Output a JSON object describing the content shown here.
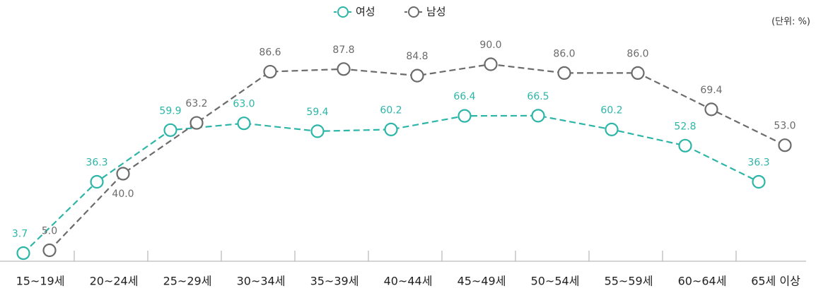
{
  "chart_data": {
    "type": "line",
    "unit_label": "(단위: %)",
    "categories": [
      "15~19세",
      "20~24세",
      "25~29세",
      "30~34세",
      "35~39세",
      "40~44세",
      "45~49세",
      "50~54세",
      "55~59세",
      "60~64세",
      "65세 이상"
    ],
    "series": [
      {
        "name": "여성",
        "color": "#2db5a8",
        "values": [
          3.7,
          36.3,
          59.9,
          63.0,
          59.4,
          60.2,
          66.4,
          66.5,
          60.2,
          52.8,
          36.3
        ],
        "value_labels": [
          "3.7",
          "36.3",
          "59.9",
          "63.0",
          "59.4",
          "60.2",
          "66.4",
          "66.5",
          "60.2",
          "52.8",
          "36.3"
        ]
      },
      {
        "name": "남성",
        "color": "#6b6b6b",
        "values": [
          5.0,
          40.0,
          63.2,
          86.6,
          87.8,
          84.8,
          90.0,
          86.0,
          86.0,
          69.4,
          53.0
        ],
        "value_labels": [
          "5.0",
          "40.0",
          "63.2",
          "86.6",
          "87.8",
          "84.8",
          "90.0",
          "86.0",
          "86.0",
          "69.4",
          "53.0"
        ]
      }
    ],
    "ylim": [
      0,
      100
    ]
  }
}
